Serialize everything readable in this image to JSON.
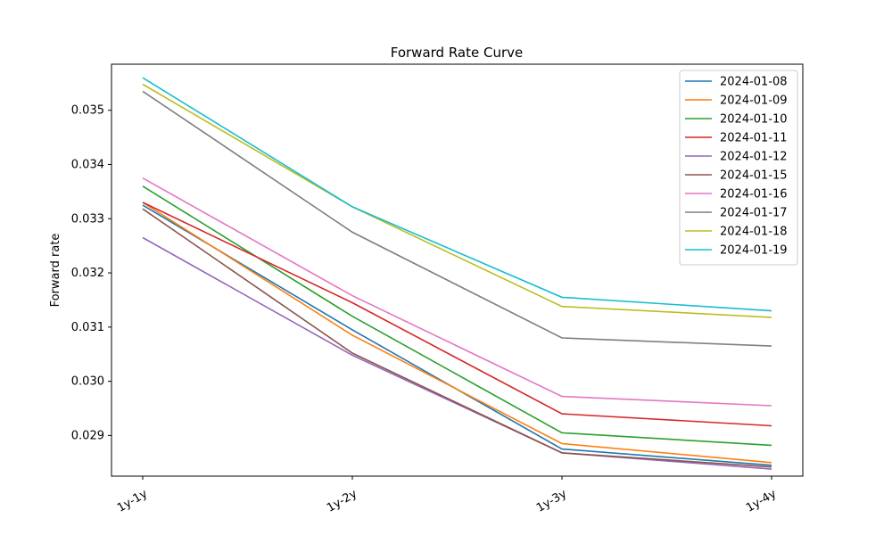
{
  "chart_data": {
    "type": "line",
    "title": "Forward Rate Curve",
    "xlabel": "",
    "ylabel": "Forward rate",
    "categories": [
      "1y-1y",
      "1y-2y",
      "1y-3y",
      "1y-4y"
    ],
    "ylim": [
      0.02825,
      0.03585
    ],
    "yticks": [
      0.029,
      0.03,
      0.031,
      0.032,
      0.033,
      0.034,
      0.035
    ],
    "ytick_labels": [
      "0.029",
      "0.030",
      "0.031",
      "0.032",
      "0.033",
      "0.034",
      "0.035"
    ],
    "legend_position": "top-right",
    "grid": false,
    "series": [
      {
        "name": "2024-01-08",
        "color": "#1f77b4",
        "values": [
          0.03325,
          0.03095,
          0.02875,
          0.02845
        ]
      },
      {
        "name": "2024-01-09",
        "color": "#ff7f0e",
        "values": [
          0.0333,
          0.03085,
          0.02885,
          0.0285
        ]
      },
      {
        "name": "2024-01-10",
        "color": "#2ca02c",
        "values": [
          0.0336,
          0.0312,
          0.02905,
          0.02882
        ]
      },
      {
        "name": "2024-01-11",
        "color": "#d62728",
        "values": [
          0.0333,
          0.03145,
          0.0294,
          0.02918
        ]
      },
      {
        "name": "2024-01-12",
        "color": "#9467bd",
        "values": [
          0.03265,
          0.03048,
          0.02868,
          0.02838
        ]
      },
      {
        "name": "2024-01-15",
        "color": "#8c564b",
        "values": [
          0.03318,
          0.03052,
          0.02868,
          0.02842
        ]
      },
      {
        "name": "2024-01-16",
        "color": "#e377c2",
        "values": [
          0.03375,
          0.03158,
          0.02972,
          0.02955
        ]
      },
      {
        "name": "2024-01-17",
        "color": "#7f7f7f",
        "values": [
          0.03535,
          0.03275,
          0.0308,
          0.03065
        ]
      },
      {
        "name": "2024-01-18",
        "color": "#bcbd22",
        "values": [
          0.03548,
          0.03322,
          0.03138,
          0.03118
        ]
      },
      {
        "name": "2024-01-19",
        "color": "#17becf",
        "values": [
          0.0356,
          0.03322,
          0.03155,
          0.0313
        ]
      }
    ]
  }
}
